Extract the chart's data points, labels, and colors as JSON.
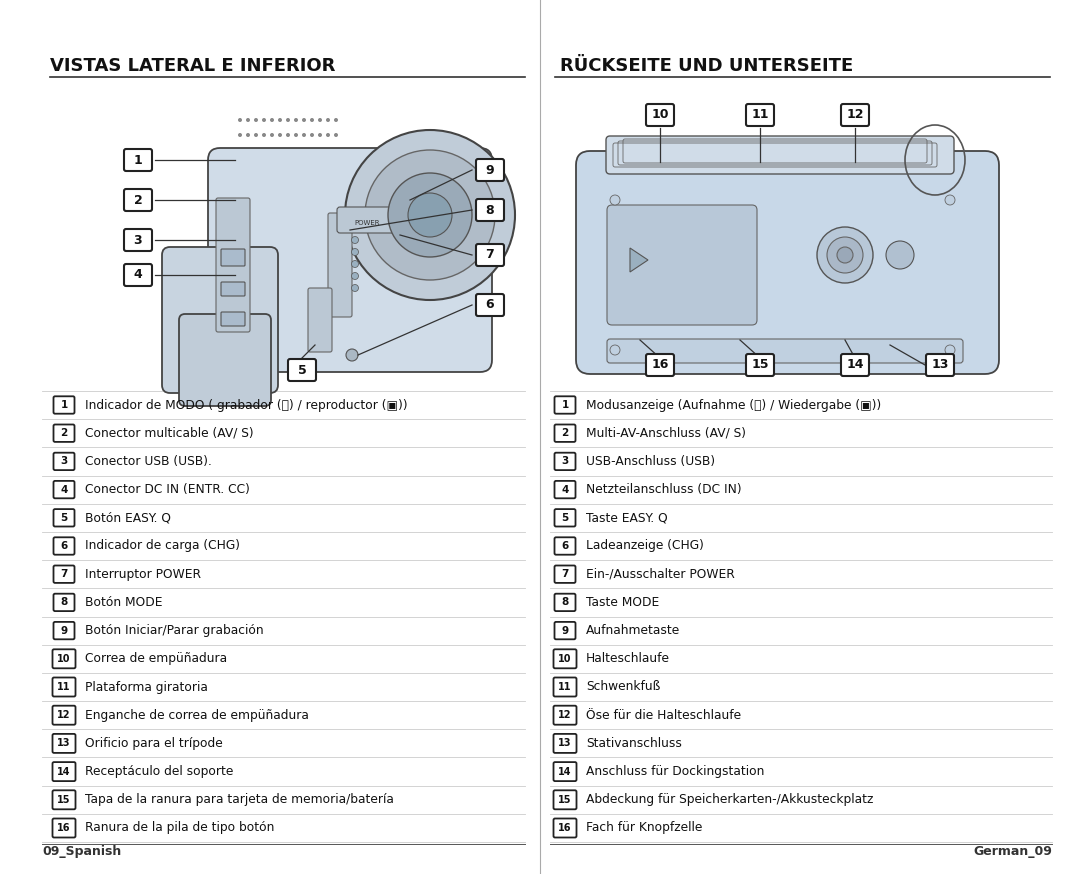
{
  "left_title": "VISTAS LATERAL E INFERIOR",
  "right_title": "RÜCKSEITE UND UNTERSEITE",
  "left_items": [
    [
      1,
      "Indicador de MODO ( grabador (🎥) / reproductor (▣))"
    ],
    [
      2,
      "Conector multicable (AV/ S)"
    ],
    [
      3,
      "Conector USB (USB)."
    ],
    [
      4,
      "Conector DC IN (ENTR. CC)"
    ],
    [
      5,
      "Botón EASY. Q"
    ],
    [
      6,
      "Indicador de carga (CHG)"
    ],
    [
      7,
      "Interruptor POWER"
    ],
    [
      8,
      "Botón MODE"
    ],
    [
      9,
      "Botón Iniciar/Parar grabación"
    ],
    [
      10,
      "Correa de empüñadura"
    ],
    [
      11,
      "Plataforma giratoria"
    ],
    [
      12,
      "Enganche de correa de empüñadura"
    ],
    [
      13,
      "Orificio para el trípode"
    ],
    [
      14,
      "Receptáculo del soporte"
    ],
    [
      15,
      "Tapa de la ranura para tarjeta de memoria/batería"
    ],
    [
      16,
      "Ranura de la pila de tipo botón"
    ]
  ],
  "right_items": [
    [
      1,
      "Modusanzeige (Aufnahme (🎥) / Wiedergabe (▣))"
    ],
    [
      2,
      "Multi-AV-Anschluss (AV/ S)"
    ],
    [
      3,
      "USB-Anschluss (USB)"
    ],
    [
      4,
      "Netzteilanschluss (DC IN)"
    ],
    [
      5,
      "Taste EASY. Q"
    ],
    [
      6,
      "Ladeanzeige (CHG)"
    ],
    [
      7,
      "Ein-/Ausschalter POWER"
    ],
    [
      8,
      "Taste MODE"
    ],
    [
      9,
      "Aufnahmetaste"
    ],
    [
      10,
      "Halteschlaufe"
    ],
    [
      11,
      "Schwenkfuß"
    ],
    [
      12,
      "Öse für die Halteschlaufe"
    ],
    [
      13,
      "Stativanschluss"
    ],
    [
      14,
      "Anschluss für Dockingstation"
    ],
    [
      15,
      "Abdeckung für Speicherkarten-/Akkusteckplatz"
    ],
    [
      16,
      "Fach für Knopfzelle"
    ]
  ],
  "left_footer": "09_Spanish",
  "right_footer": "German_09",
  "bg_color": "#ffffff",
  "text_color": "#111111",
  "title_color": "#111111",
  "line_color": "#cccccc",
  "divider_color": "#aaaaaa",
  "cam_body_color": "#d8e4ed",
  "cam_edge_color": "#444444"
}
